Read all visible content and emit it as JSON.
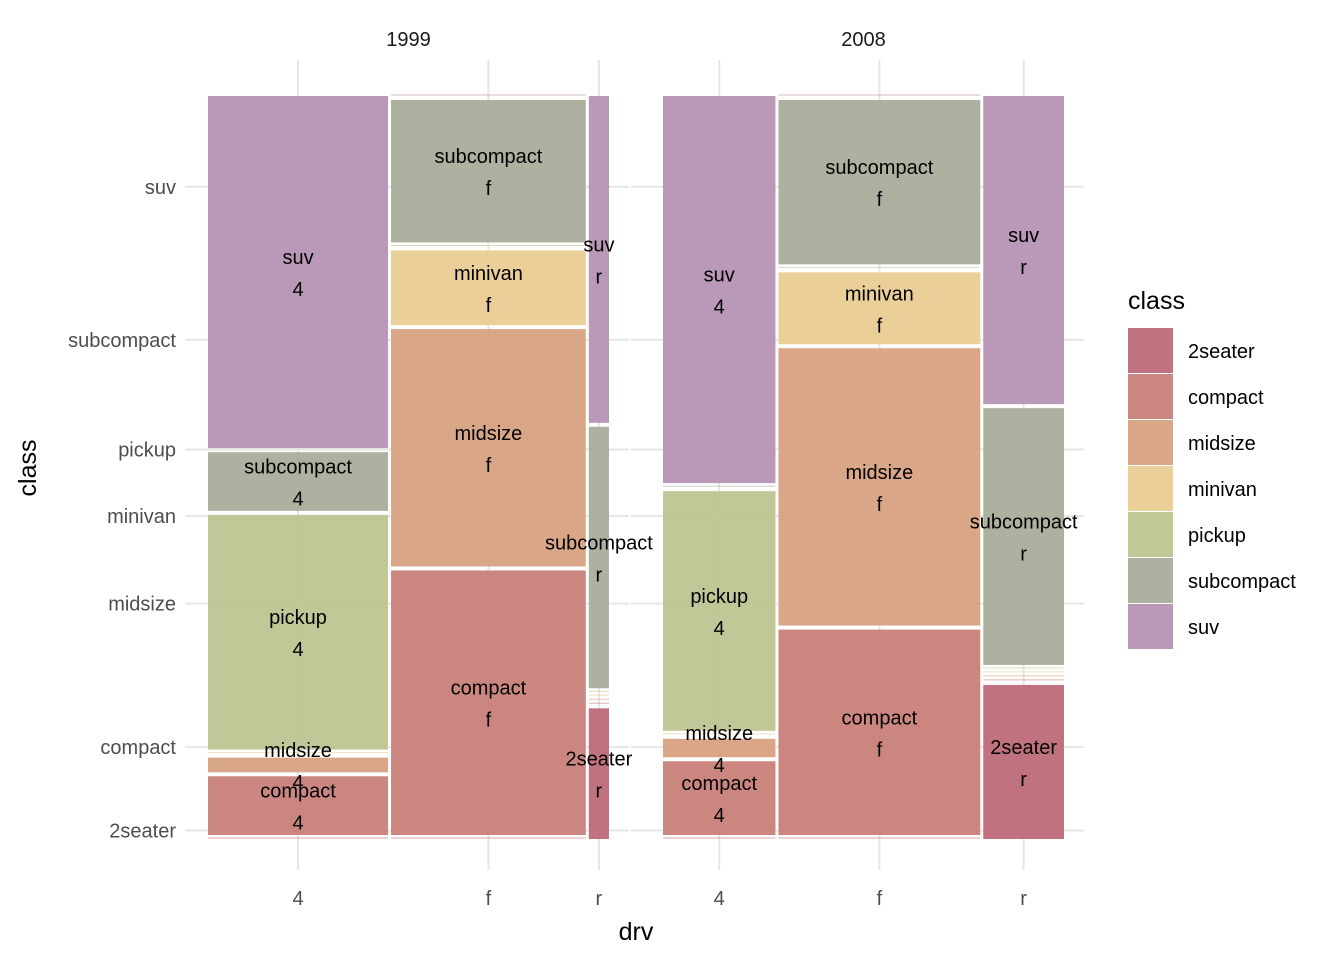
{
  "chart_data": {
    "type": "mosaic",
    "xlabel": "drv",
    "ylabel": "class",
    "facets": [
      "1999",
      "2008"
    ],
    "x_categories": [
      "4",
      "f",
      "r"
    ],
    "y_categories": [
      "2seater",
      "compact",
      "midsize",
      "minivan",
      "pickup",
      "subcompact",
      "suv"
    ],
    "y_tick_labels": [
      "2seater",
      "compact",
      "midsize",
      "minivan",
      "pickup",
      "subcompact",
      "suv"
    ],
    "counts": {
      "1999": {
        "4": {
          "2seater": 0,
          "compact": 8,
          "midsize": 2,
          "minivan": 0,
          "pickup": 32,
          "subcompact": 8,
          "suv": 48
        },
        "f": {
          "2seater": 0,
          "compact": 39,
          "midsize": 35,
          "minivan": 11,
          "pickup": 0,
          "subcompact": 21,
          "suv": 0
        },
        "r": {
          "2seater": 2,
          "compact": 0,
          "midsize": 0,
          "minivan": 0,
          "pickup": 0,
          "subcompact": 4,
          "suv": 5
        }
      },
      "2008": {
        "4": {
          "2seater": 0,
          "compact": 4,
          "midsize": 1,
          "minivan": 0,
          "pickup": 13,
          "subcompact": 0,
          "suv": 21
        },
        "f": {
          "2seater": 0,
          "compact": 20,
          "midsize": 27,
          "minivan": 7,
          "pickup": 0,
          "subcompact": 16,
          "suv": 0
        },
        "r": {
          "2seater": 6,
          "compact": 0,
          "midsize": 0,
          "minivan": 0,
          "pickup": 0,
          "subcompact": 10,
          "suv": 12
        }
      }
    },
    "legend": {
      "title": "class",
      "position": "right",
      "entries": [
        "2seater",
        "compact",
        "midsize",
        "minivan",
        "pickup",
        "subcompact",
        "suv"
      ]
    },
    "colors": {
      "2seater": "#bd6b78",
      "compact": "#c97f79",
      "midsize": "#d7a282",
      "minivan": "#eacc92",
      "pickup": "#bec491",
      "subcompact": "#a9ad9b",
      "suv": "#b692b3"
    },
    "grid": true
  }
}
